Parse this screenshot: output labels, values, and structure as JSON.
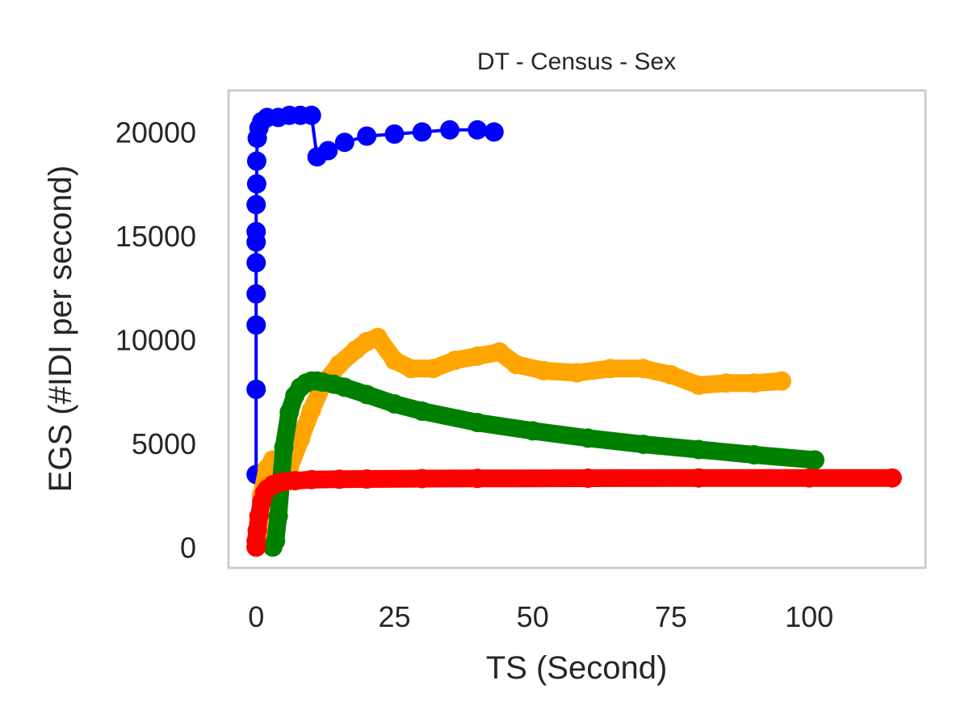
{
  "chart_data": {
    "type": "line",
    "title": "DT - Census - Sex",
    "xlabel": "TS (Second)",
    "ylabel": "EGS (#IDI  per second)",
    "xlim": [
      -5,
      121
    ],
    "ylim": [
      -1000,
      22000
    ],
    "xticks": [
      0,
      25,
      50,
      75,
      100
    ],
    "xtick_labels": [
      "0",
      "25",
      "50",
      "75",
      "100"
    ],
    "yticks": [
      0,
      5000,
      10000,
      15000,
      20000
    ],
    "ytick_labels": [
      "0",
      "5000",
      "10000",
      "15000",
      "20000"
    ],
    "grid": false,
    "legend": "none",
    "frame_color": "#cccccc",
    "series": [
      {
        "color": "#0000ff",
        "marker": "circle",
        "x": [
          0,
          0,
          0,
          0,
          0,
          0,
          0,
          0,
          0,
          0.1,
          0.1,
          0.2,
          0.5,
          1,
          2,
          4,
          6,
          8,
          10,
          11,
          13,
          16,
          20,
          25,
          30,
          35,
          40,
          43
        ],
        "y": [
          0,
          3500,
          7600,
          10700,
          12200,
          13700,
          14700,
          15200,
          16500,
          17500,
          18600,
          19700,
          20200,
          20500,
          20700,
          20700,
          20800,
          20800,
          20800,
          18800,
          19100,
          19500,
          19800,
          19900,
          20000,
          20100,
          20100,
          20000
        ]
      },
      {
        "color": "#ffa500",
        "marker": "circle",
        "x": [
          0,
          0.5,
          1,
          2,
          3,
          4,
          5,
          6,
          8,
          10,
          12,
          15,
          18,
          20,
          22,
          25,
          28,
          32,
          36,
          40,
          44,
          47,
          52,
          58,
          64,
          70,
          75,
          80,
          85,
          90,
          95
        ],
        "y": [
          0,
          800,
          2500,
          3800,
          4200,
          3600,
          3300,
          3800,
          5200,
          6600,
          7800,
          8800,
          9500,
          9900,
          10100,
          9000,
          8600,
          8600,
          9000,
          9200,
          9400,
          8800,
          8500,
          8400,
          8600,
          8600,
          8300,
          7800,
          7900,
          7900,
          8000
        ]
      },
      {
        "color": "#008000",
        "marker": "circle",
        "x": [
          3,
          3.5,
          4,
          5,
          6,
          7,
          8,
          9,
          10,
          11,
          12,
          14,
          16,
          20,
          25,
          30,
          40,
          50,
          60,
          70,
          80,
          90,
          101
        ],
        "y": [
          0,
          300,
          1500,
          4800,
          6500,
          7300,
          7700,
          7900,
          8000,
          8000,
          7950,
          7850,
          7700,
          7350,
          6900,
          6550,
          6000,
          5600,
          5250,
          4950,
          4700,
          4450,
          4200
        ]
      },
      {
        "color": "#ff0000",
        "marker": "circle",
        "x": [
          0,
          0,
          0.2,
          0.5,
          1,
          1.5,
          2,
          3,
          4,
          5,
          7,
          10,
          15,
          20,
          30,
          40,
          60,
          80,
          100,
          115
        ],
        "y": [
          0,
          300,
          800,
          1500,
          2200,
          2600,
          2800,
          3000,
          3100,
          3150,
          3200,
          3250,
          3270,
          3280,
          3300,
          3310,
          3320,
          3330,
          3330,
          3330
        ]
      }
    ]
  }
}
